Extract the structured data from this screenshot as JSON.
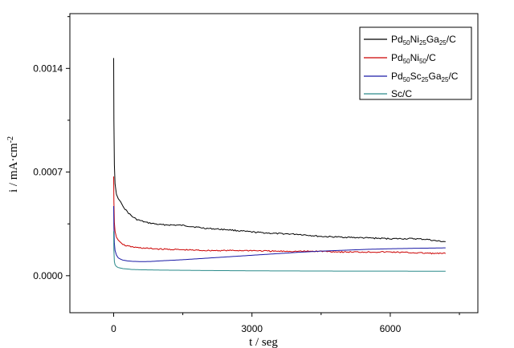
{
  "chart_data": {
    "type": "line",
    "title": "",
    "xlabel": "t / seg",
    "ylabel_main": "i / mA·cm",
    "ylabel_sup": "-2",
    "xlim": [
      -950,
      7900
    ],
    "ylim": [
      -0.00025,
      0.00177
    ],
    "xticks": [
      0,
      3000,
      6000
    ],
    "xtick_labels": [
      "0",
      "3000",
      "6000"
    ],
    "yticks": [
      0.0,
      0.0007,
      0.0014
    ],
    "ytick_labels": [
      "0.0000",
      "0.0007",
      "0.0014"
    ],
    "grid": false,
    "legend_position": "top-right",
    "series": [
      {
        "name": "Pd50Ni25Ga25/C",
        "legend_parts": [
          [
            "Pd",
            ""
          ],
          [
            "50",
            "sub"
          ],
          [
            "Ni",
            ""
          ],
          [
            "25",
            "sub"
          ],
          [
            "Ga",
            ""
          ],
          [
            "25",
            "sub"
          ],
          [
            "/C",
            ""
          ]
        ],
        "color": "#000000",
        "x": [
          0,
          5,
          15,
          30,
          60,
          100,
          150,
          200,
          300,
          400,
          500,
          700,
          1000,
          1500,
          2000,
          2500,
          3000,
          3500,
          4000,
          4500,
          5000,
          5500,
          6000,
          6500,
          6800,
          7000,
          7200
        ],
        "y": [
          0.00147,
          0.00105,
          0.00075,
          0.00062,
          0.00055,
          0.00052,
          0.0005,
          0.00047,
          0.00043,
          0.0004,
          0.00038,
          0.00036,
          0.000345,
          0.00034,
          0.00032,
          0.00031,
          0.000295,
          0.000285,
          0.00028,
          0.000265,
          0.00026,
          0.000255,
          0.00025,
          0.00025,
          0.000245,
          0.000235,
          0.00023
        ]
      },
      {
        "name": "Pd50Ni50/C",
        "legend_parts": [
          [
            "Pd",
            ""
          ],
          [
            "50",
            "sub"
          ],
          [
            "Ni",
            ""
          ],
          [
            "50",
            "sub"
          ],
          [
            "/C",
            ""
          ]
        ],
        "color": "#cc0000",
        "x": [
          0,
          5,
          15,
          30,
          60,
          100,
          150,
          200,
          300,
          500,
          700,
          1000,
          1500,
          2000,
          2500,
          3000,
          3500,
          4000,
          4500,
          5000,
          5500,
          6000,
          6500,
          7000,
          7200
        ],
        "y": [
          0.00067,
          0.0005,
          0.00036,
          0.0003,
          0.00026,
          0.00024,
          0.000225,
          0.00021,
          0.0002,
          0.00019,
          0.000185,
          0.00018,
          0.000175,
          0.00017,
          0.00017,
          0.00017,
          0.000165,
          0.000165,
          0.000165,
          0.00016,
          0.00016,
          0.00016,
          0.000155,
          0.00015,
          0.00015
        ]
      },
      {
        "name": "Pd50Sc25Ga25/C",
        "legend_parts": [
          [
            "Pd",
            ""
          ],
          [
            "50",
            "sub"
          ],
          [
            "Sc",
            ""
          ],
          [
            "25",
            "sub"
          ],
          [
            "Ga",
            ""
          ],
          [
            "25",
            "sub"
          ],
          [
            "/C",
            ""
          ]
        ],
        "color": "#1a1aa6",
        "x": [
          0,
          5,
          15,
          30,
          60,
          100,
          150,
          200,
          300,
          400,
          600,
          800,
          1000,
          1500,
          2000,
          2500,
          3000,
          3500,
          4000,
          4500,
          5000,
          5500,
          6000,
          6500,
          7000,
          7200
        ],
        "y": [
          0.00047,
          0.00033,
          0.00022,
          0.00017,
          0.00014,
          0.00012,
          0.000112,
          0.000105,
          0.0001,
          9.7e-05,
          9.5e-05,
          9.6e-05,
          0.0001,
          0.000108,
          0.000118,
          0.000128,
          0.000138,
          0.000148,
          0.000158,
          0.000166,
          0.000172,
          0.000178,
          0.000182,
          0.000185,
          0.000187,
          0.000188
        ]
      },
      {
        "name": "Sc/C",
        "legend_parts": [
          [
            "Sc/C",
            ""
          ]
        ],
        "color": "#2a8a8a",
        "x": [
          0,
          5,
          15,
          30,
          60,
          100,
          200,
          400,
          600,
          1000,
          2000,
          3000,
          4000,
          5000,
          6000,
          7000,
          7200
        ],
        "y": [
          0.0003,
          0.00017,
          9.5e-05,
          7.5e-05,
          6.2e-05,
          5.5e-05,
          4.8e-05,
          4.2e-05,
          4e-05,
          3.8e-05,
          3.5e-05,
          3.3e-05,
          3.2e-05,
          3.1e-05,
          3.1e-05,
          3e-05,
          3e-05
        ]
      }
    ]
  }
}
